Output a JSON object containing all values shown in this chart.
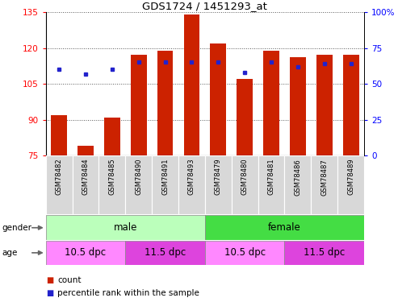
{
  "title": "GDS1724 / 1451293_at",
  "samples": [
    "GSM78482",
    "GSM78484",
    "GSM78485",
    "GSM78490",
    "GSM78491",
    "GSM78493",
    "GSM78479",
    "GSM78480",
    "GSM78481",
    "GSM78486",
    "GSM78487",
    "GSM78489"
  ],
  "count_values": [
    92,
    79,
    91,
    117,
    119,
    134,
    122,
    107,
    119,
    116,
    117,
    117
  ],
  "percentile_values": [
    60,
    57,
    60,
    65,
    65,
    65,
    65,
    58,
    65,
    62,
    64,
    64
  ],
  "ylim_left": [
    75,
    135
  ],
  "ylim_right": [
    0,
    100
  ],
  "yticks_left": [
    75,
    90,
    105,
    120,
    135
  ],
  "yticks_right": [
    0,
    25,
    50,
    75,
    100
  ],
  "bar_color": "#cc2200",
  "dot_color": "#2222cc",
  "male_light": "#bbffbb",
  "male_dark": "#44dd44",
  "age_light": "#ff88ff",
  "age_dark": "#dd44dd",
  "gender_groups": [
    {
      "label": "male",
      "start": 0,
      "end": 6,
      "color": "#bbffbb"
    },
    {
      "label": "female",
      "start": 6,
      "end": 12,
      "color": "#44dd44"
    }
  ],
  "age_groups": [
    {
      "label": "10.5 dpc",
      "start": 0,
      "end": 3,
      "color": "#ff88ff"
    },
    {
      "label": "11.5 dpc",
      "start": 3,
      "end": 6,
      "color": "#dd44dd"
    },
    {
      "label": "10.5 dpc",
      "start": 6,
      "end": 9,
      "color": "#ff88ff"
    },
    {
      "label": "11.5 dpc",
      "start": 9,
      "end": 12,
      "color": "#dd44dd"
    }
  ]
}
